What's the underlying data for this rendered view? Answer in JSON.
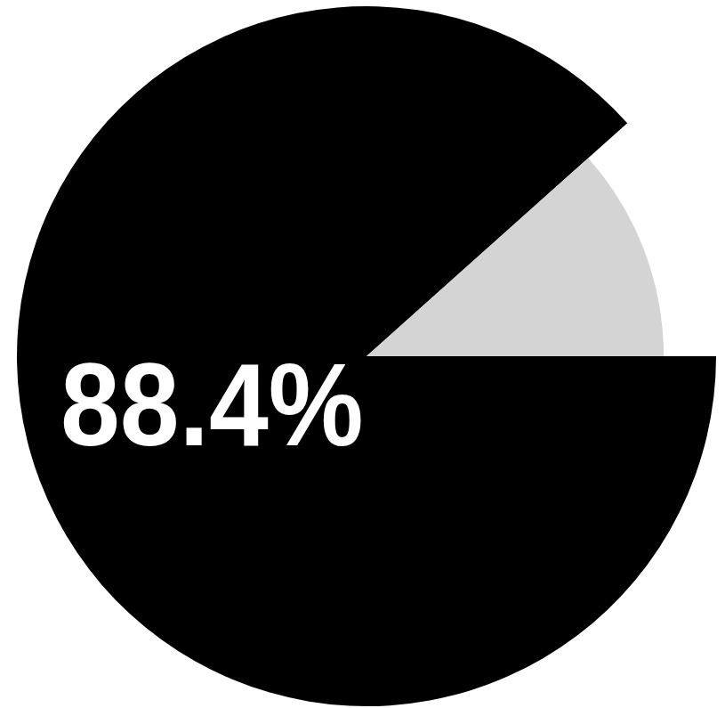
{
  "chart_data": {
    "type": "pie",
    "values": [
      88.4,
      11.6
    ],
    "value_labels": [
      "88.4%",
      null
    ],
    "colors": [
      "#000000",
      "#d4d4d4"
    ],
    "data_labels": true
  }
}
